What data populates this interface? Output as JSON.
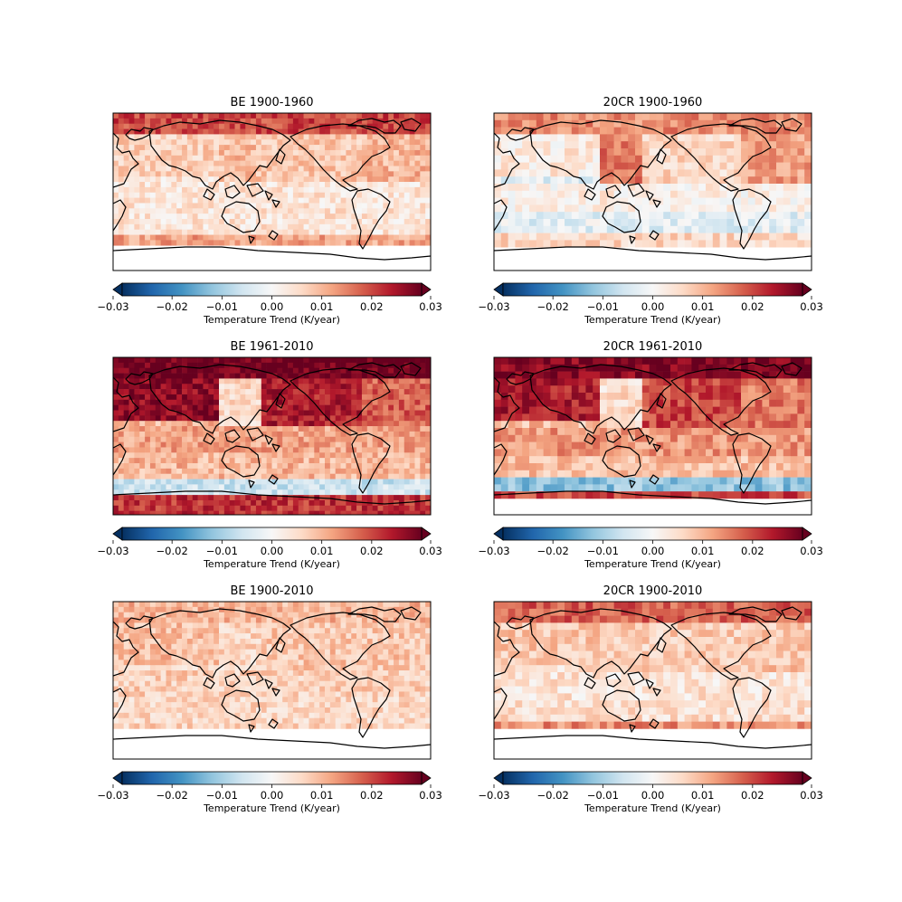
{
  "colormap": {
    "name": "RdBu_r",
    "stops": [
      "#053061",
      "#2166ac",
      "#4393c3",
      "#92c5de",
      "#d1e5f0",
      "#f7f7f7",
      "#fddbc7",
      "#f4a582",
      "#d6604d",
      "#b2182b",
      "#67001f"
    ],
    "under": "#053061",
    "over": "#67001f",
    "land_outline": "#000000"
  },
  "chart_data": [
    {
      "type": "heatmap",
      "title": "BE 1900-1960",
      "dataset": "BE",
      "period": "1900-1960",
      "colorbar": {
        "label": "Temperature Trend (K/year)",
        "ticks": [
          "−0.03",
          "−0.02",
          "−0.01",
          "0.00",
          "0.01",
          "0.02",
          "0.03"
        ],
        "vmin": -0.03,
        "vmax": 0.03,
        "extend": "both"
      },
      "missing_south_of_lat": -60,
      "trend_by_region_k_per_year": {
        "arctic": 0.02,
        "north_america": 0.008,
        "eurasia": 0.007,
        "north_atlantic": 0.01,
        "north_pacific": 0.009,
        "tropics": 0.004,
        "south_pacific": 0.004,
        "southern_ocean": 0.012
      }
    },
    {
      "type": "heatmap",
      "title": "20CR 1900-1960",
      "dataset": "20CR",
      "period": "1900-1960",
      "colorbar": {
        "label": "Temperature Trend (K/year)",
        "ticks": [
          "−0.03",
          "−0.02",
          "−0.01",
          "0.00",
          "0.01",
          "0.02",
          "0.03"
        ],
        "vmin": -0.03,
        "vmax": 0.03,
        "extend": "both"
      },
      "missing_south_of_lat": -63,
      "trend_by_region_k_per_year": {
        "arctic": 0.014,
        "north_america": 0.006,
        "eurasia": 0.003,
        "north_atlantic": 0.012,
        "north_pacific": 0.016,
        "tropics": 0.002,
        "south_pacific": -0.003,
        "southern_ocean": 0.006
      }
    },
    {
      "type": "heatmap",
      "title": "BE 1961-2010",
      "dataset": "BE",
      "period": "1961-2010",
      "colorbar": {
        "label": "Temperature Trend (K/year)",
        "ticks": [
          "−0.03",
          "−0.02",
          "−0.01",
          "0.00",
          "0.01",
          "0.02",
          "0.03"
        ],
        "vmin": -0.03,
        "vmax": 0.03,
        "extend": "both"
      },
      "missing_south_of_lat": -90,
      "trend_by_region_k_per_year": {
        "arctic": 0.03,
        "north_america": 0.024,
        "eurasia": 0.027,
        "north_atlantic": 0.018,
        "north_pacific": 0.006,
        "tropics": 0.012,
        "south_pacific": 0.01,
        "southern_ocean": -0.006,
        "antarctica": 0.022
      }
    },
    {
      "type": "heatmap",
      "title": "20CR 1961-2010",
      "dataset": "20CR",
      "period": "1961-2010",
      "colorbar": {
        "label": "Temperature Trend (K/year)",
        "ticks": [
          "−0.03",
          "−0.02",
          "−0.01",
          "0.00",
          "0.01",
          "0.02",
          "0.03"
        ],
        "vmin": -0.03,
        "vmax": 0.03,
        "extend": "both"
      },
      "missing_south_of_lat": -75,
      "trend_by_region_k_per_year": {
        "arctic": 0.028,
        "north_america": 0.02,
        "eurasia": 0.024,
        "north_atlantic": 0.016,
        "north_pacific": 0.005,
        "tropics": 0.013,
        "south_pacific": 0.009,
        "southern_ocean": -0.012,
        "antarctica": 0.02
      }
    },
    {
      "type": "heatmap",
      "title": "BE 1900-2010",
      "dataset": "BE",
      "period": "1900-2010",
      "colorbar": {
        "label": "Temperature Trend (K/year)",
        "ticks": [
          "−0.03",
          "−0.02",
          "−0.01",
          "0.00",
          "0.01",
          "0.02",
          "0.03"
        ],
        "vmin": -0.03,
        "vmax": 0.03,
        "extend": "both"
      },
      "missing_south_of_lat": -58,
      "trend_by_region_k_per_year": {
        "arctic": 0.01,
        "north_america": 0.008,
        "eurasia": 0.009,
        "north_atlantic": 0.008,
        "north_pacific": 0.006,
        "tropics": 0.007,
        "south_pacific": 0.006,
        "southern_ocean": 0.007
      }
    },
    {
      "type": "heatmap",
      "title": "20CR 1900-2010",
      "dataset": "20CR",
      "period": "1900-2010",
      "colorbar": {
        "label": "Temperature Trend (K/year)",
        "ticks": [
          "−0.03",
          "−0.02",
          "−0.01",
          "0.00",
          "0.01",
          "0.02",
          "0.03"
        ],
        "vmin": -0.03,
        "vmax": 0.03,
        "extend": "both"
      },
      "missing_south_of_lat": -58,
      "trend_by_region_k_per_year": {
        "arctic": 0.018,
        "north_america": 0.007,
        "eurasia": 0.008,
        "north_atlantic": 0.008,
        "north_pacific": 0.007,
        "tropics": 0.004,
        "south_pacific": 0.005,
        "southern_ocean": 0.014
      }
    }
  ]
}
